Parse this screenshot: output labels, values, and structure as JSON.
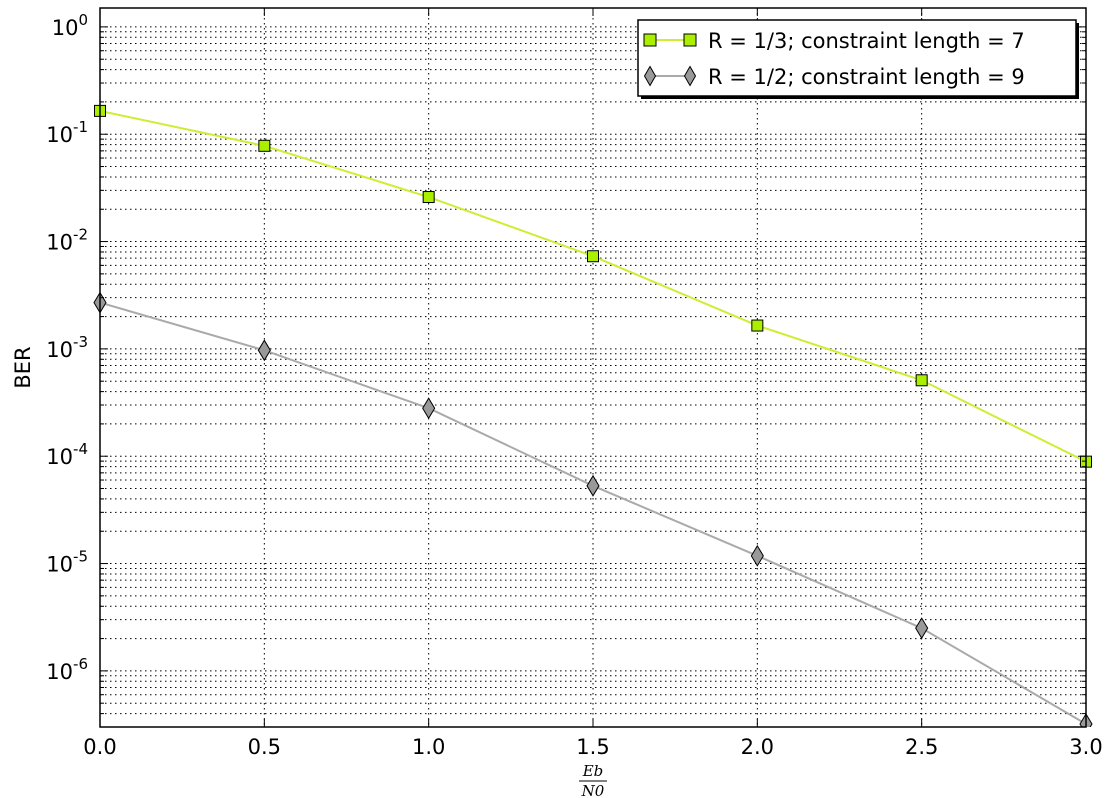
{
  "chart_data": {
    "type": "line",
    "title": "",
    "xlabel": {
      "numerator": "Eb",
      "denominator": "N0"
    },
    "ylabel": "BER",
    "xlim": [
      0.0,
      3.0
    ],
    "ylim": [
      3e-07,
      1.5
    ],
    "yscale": "log",
    "grid": true,
    "legend_position": "top-right",
    "x_ticks": [
      "0.0",
      "0.5",
      "1.0",
      "1.5",
      "2.0",
      "2.5",
      "3.0"
    ],
    "y_ticks": [
      {
        "base": "10",
        "exp": "0"
      },
      {
        "base": "10",
        "exp": "-1"
      },
      {
        "base": "10",
        "exp": "-2"
      },
      {
        "base": "10",
        "exp": "-3"
      },
      {
        "base": "10",
        "exp": "-4"
      },
      {
        "base": "10",
        "exp": "-5"
      },
      {
        "base": "10",
        "exp": "-6"
      }
    ],
    "series": [
      {
        "name": "R = 1/3; constraint length = 7",
        "marker": "square",
        "line_color": "#ccee33",
        "marker_fill": "#aaee00",
        "x": [
          0.0,
          0.5,
          1.0,
          1.5,
          2.0,
          2.5,
          3.0
        ],
        "y": [
          0.165,
          0.078,
          0.026,
          0.0073,
          0.00165,
          0.00051,
          8.9e-05
        ]
      },
      {
        "name": "R = 1/2; constraint length = 9",
        "marker": "diamond",
        "line_color": "#aaaaaa",
        "marker_fill": "#999999",
        "x": [
          0.0,
          0.5,
          1.0,
          1.5,
          2.0,
          2.5,
          3.0
        ],
        "y": [
          0.0027,
          0.00097,
          0.00028,
          5.3e-05,
          1.18e-05,
          2.5e-06,
          3.2e-07
        ]
      }
    ]
  }
}
